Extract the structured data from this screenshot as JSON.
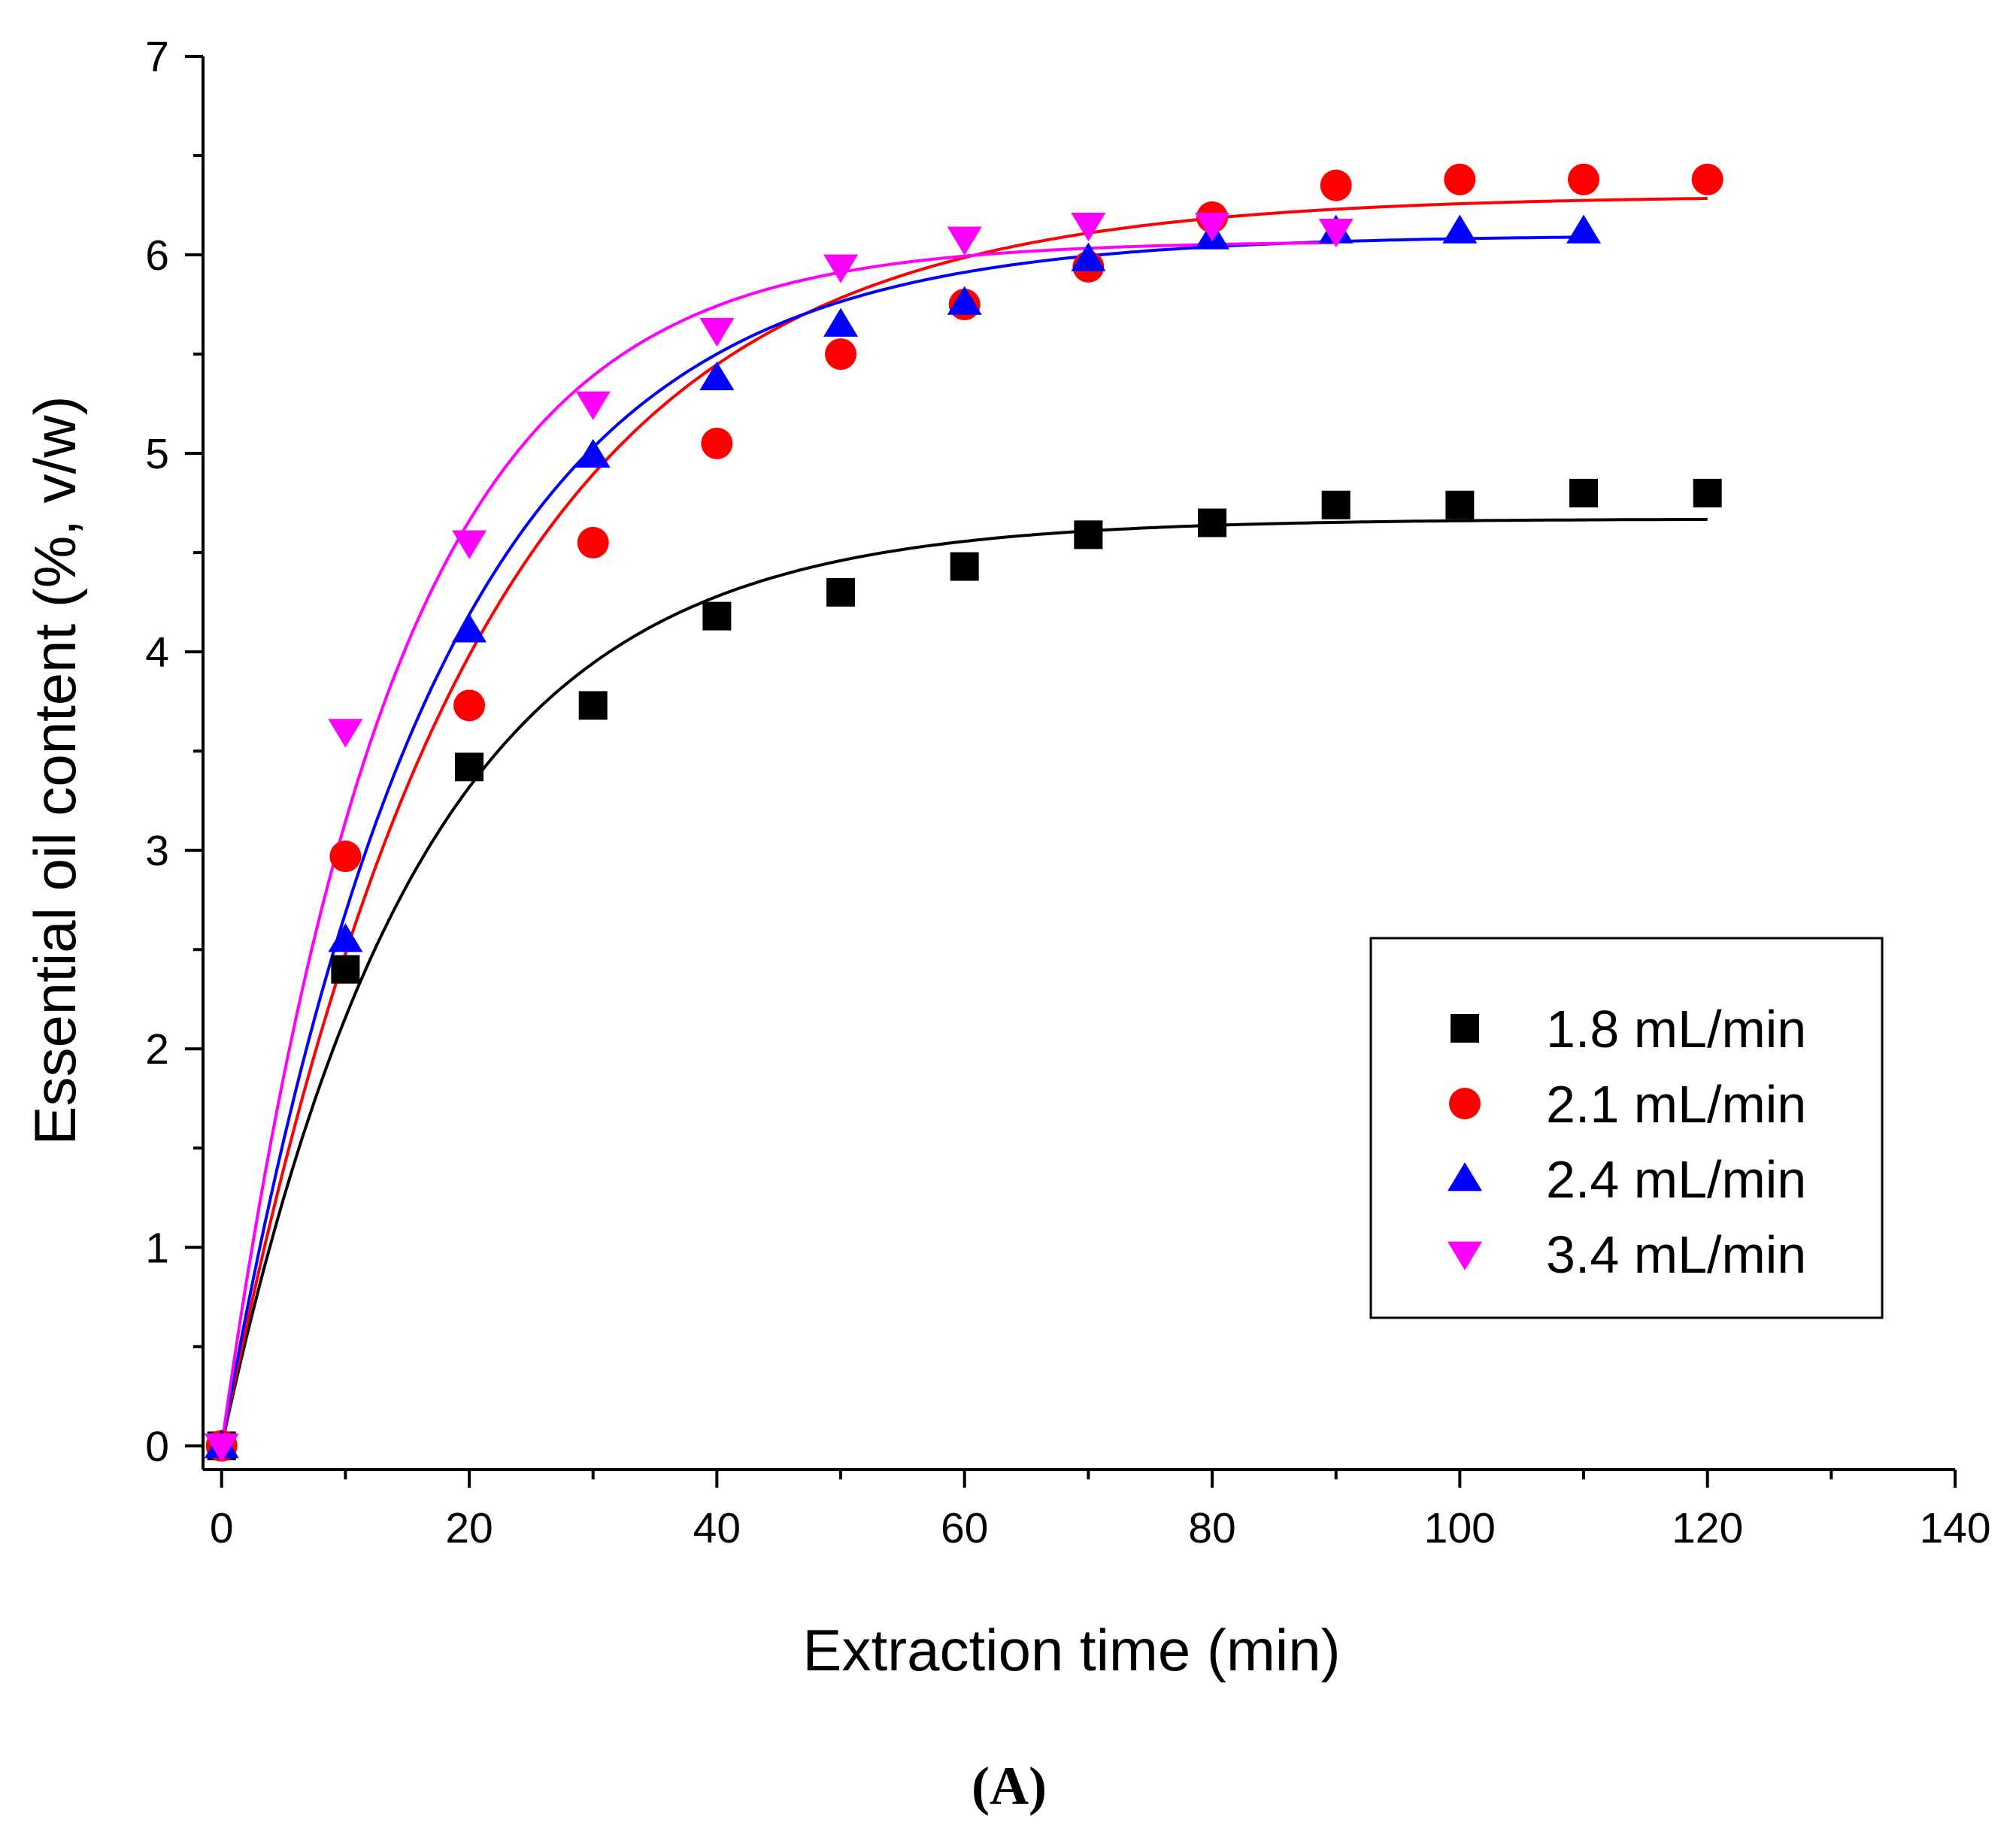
{
  "chart_data": {
    "type": "scatter",
    "title": "",
    "xlabel": "Extraction time (min)",
    "ylabel": "Essential oil content (%, v/w)",
    "xlim": [
      -1.5,
      140
    ],
    "ylim": [
      -0.12,
      7
    ],
    "xticks": [
      0,
      20,
      40,
      60,
      80,
      100,
      120,
      140
    ],
    "yticks": [
      0,
      1,
      2,
      3,
      4,
      5,
      6,
      7
    ],
    "xtick_labels": [
      "0",
      "20",
      "40",
      "60",
      "80",
      "100",
      "120",
      "140"
    ],
    "ytick_labels": [
      "0",
      "1",
      "2",
      "3",
      "4",
      "5",
      "6",
      "7"
    ],
    "grid": false,
    "legend_position": "lower-right",
    "caption": "(A)",
    "series": [
      {
        "name": "1.8 mL/min",
        "color": "#000000",
        "marker": "square",
        "x": [
          0,
          10,
          20,
          30,
          40,
          50,
          60,
          70,
          80,
          90,
          100,
          110,
          120
        ],
        "y": [
          0,
          2.4,
          3.42,
          3.73,
          4.18,
          4.3,
          4.43,
          4.59,
          4.65,
          4.74,
          4.74,
          4.8,
          4.8
        ],
        "fit": {
          "model": "A*(1-exp(-k*t))",
          "A": 4.67,
          "k": 0.062,
          "t_max": 120
        }
      },
      {
        "name": "2.1 mL/min",
        "color": "#ff0000",
        "marker": "circle",
        "x": [
          0,
          10,
          20,
          30,
          40,
          50,
          60,
          70,
          80,
          90,
          100,
          110,
          120
        ],
        "y": [
          0,
          2.97,
          3.73,
          4.55,
          5.05,
          5.5,
          5.75,
          5.94,
          6.19,
          6.35,
          6.38,
          6.38,
          6.38
        ],
        "fit": {
          "model": "A*(1-exp(-k*t))",
          "A": 6.3,
          "k": 0.05,
          "t_max": 120
        }
      },
      {
        "name": "2.4 mL/min",
        "color": "#0000ff",
        "marker": "triangle-up",
        "x": [
          0,
          10,
          20,
          30,
          40,
          50,
          60,
          70,
          80,
          90,
          100,
          110
        ],
        "y": [
          0,
          2.55,
          4.11,
          4.99,
          5.38,
          5.65,
          5.76,
          5.98,
          6.09,
          6.12,
          6.12,
          6.12
        ],
        "fit": {
          "model": "A*(1-exp(-k*t))",
          "A": 6.1,
          "k": 0.058,
          "t_max": 110
        }
      },
      {
        "name": "3.4 mL/min",
        "color": "#ff00ff",
        "marker": "triangle-down",
        "x": [
          0,
          10,
          20,
          30,
          40,
          50,
          60,
          70,
          80,
          90
        ],
        "y": [
          0,
          3.6,
          4.55,
          5.25,
          5.62,
          5.94,
          6.08,
          6.15,
          6.15,
          6.12
        ],
        "fit": {
          "model": "A*(1-exp(-k*t))",
          "A": 6.07,
          "k": 0.073,
          "t_max": 90
        }
      }
    ]
  }
}
